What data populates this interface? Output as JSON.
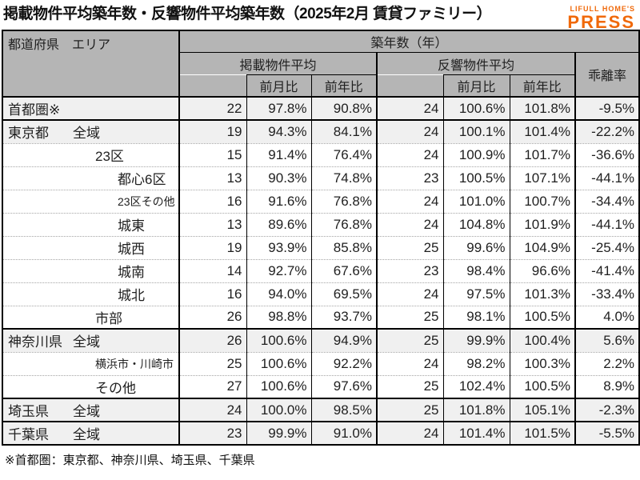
{
  "header": {
    "title": "掲載物件平均築年数・反響物件平均築年数（2025年2月 賃貸ファミリー）",
    "logo_top": "LIFULL HOME'S",
    "logo_bottom": "PRESS"
  },
  "footnote": "※首都圏：東京都、神奈川県、埼玉県、千葉県",
  "colors": {
    "accent_orange": "#f0690a",
    "header_bg": "#b5b5b5",
    "shaded_row_bg": "#f0f0f0",
    "border": "#000000"
  },
  "chart_data": {
    "type": "table",
    "title": "掲載物件平均築年数・反響物件平均築年数（2025年2月 賃貸ファミリー）",
    "corner_header": "都道府県　エリア",
    "age_unit_header": "築年数（年）",
    "groups": {
      "listed": "掲載物件平均",
      "inquiry": "反響物件平均",
      "deviation": "乖離率",
      "mom": "前月比",
      "yoy": "前年比"
    },
    "columns": [
      "都道府県 エリア",
      "掲載物件平均",
      "掲載 前月比",
      "掲載 前年比",
      "反響物件平均",
      "反響 前月比",
      "反響 前年比",
      "乖離率"
    ],
    "rows": [
      {
        "prefecture": "首都圏※",
        "area": "",
        "indent": 0,
        "small": false,
        "shaded": true,
        "sep": "thick",
        "values": [
          "22",
          "97.8%",
          "90.8%",
          "24",
          "100.6%",
          "101.8%",
          "-9.5%"
        ]
      },
      {
        "prefecture": "東京都",
        "area": "全域",
        "indent": 0,
        "small": false,
        "shaded": true,
        "sep": "dot",
        "values": [
          "19",
          "94.3%",
          "84.1%",
          "24",
          "100.1%",
          "101.4%",
          "-22.2%"
        ]
      },
      {
        "prefecture": "",
        "area": "23区",
        "indent": 1,
        "small": false,
        "shaded": false,
        "sep": "dot",
        "values": [
          "15",
          "91.4%",
          "76.4%",
          "24",
          "100.9%",
          "101.7%",
          "-36.6%"
        ]
      },
      {
        "prefecture": "",
        "area": "都心6区",
        "indent": 2,
        "small": false,
        "shaded": false,
        "sep": "dot",
        "values": [
          "13",
          "90.3%",
          "74.8%",
          "23",
          "100.5%",
          "107.1%",
          "-44.1%"
        ]
      },
      {
        "prefecture": "",
        "area": "23区その他",
        "indent": 2,
        "small": true,
        "shaded": false,
        "sep": "dot",
        "values": [
          "16",
          "91.6%",
          "76.8%",
          "24",
          "101.0%",
          "100.7%",
          "-34.4%"
        ]
      },
      {
        "prefecture": "",
        "area": "城東",
        "indent": 2,
        "small": false,
        "shaded": false,
        "sep": "dot",
        "values": [
          "13",
          "89.6%",
          "76.8%",
          "24",
          "104.8%",
          "101.9%",
          "-44.1%"
        ]
      },
      {
        "prefecture": "",
        "area": "城西",
        "indent": 2,
        "small": false,
        "shaded": false,
        "sep": "dot",
        "values": [
          "19",
          "93.9%",
          "85.8%",
          "25",
          "99.6%",
          "104.9%",
          "-25.4%"
        ]
      },
      {
        "prefecture": "",
        "area": "城南",
        "indent": 2,
        "small": false,
        "shaded": false,
        "sep": "dot",
        "values": [
          "14",
          "92.7%",
          "67.6%",
          "23",
          "98.4%",
          "96.6%",
          "-41.4%"
        ]
      },
      {
        "prefecture": "",
        "area": "城北",
        "indent": 2,
        "small": false,
        "shaded": false,
        "sep": "dot",
        "values": [
          "16",
          "94.0%",
          "69.5%",
          "24",
          "97.5%",
          "101.3%",
          "-33.4%"
        ]
      },
      {
        "prefecture": "",
        "area": "市部",
        "indent": 1,
        "small": false,
        "shaded": false,
        "sep": "thick",
        "values": [
          "26",
          "98.8%",
          "93.7%",
          "25",
          "98.1%",
          "100.5%",
          "4.0%"
        ]
      },
      {
        "prefecture": "神奈川県",
        "area": "全域",
        "indent": 0,
        "small": false,
        "shaded": true,
        "sep": "dot",
        "values": [
          "26",
          "100.6%",
          "94.9%",
          "25",
          "99.9%",
          "100.4%",
          "5.6%"
        ]
      },
      {
        "prefecture": "",
        "area": "横浜市・川崎市",
        "indent": 1,
        "small": true,
        "shaded": false,
        "sep": "dot",
        "values": [
          "25",
          "100.6%",
          "92.2%",
          "24",
          "98.2%",
          "100.3%",
          "2.2%"
        ]
      },
      {
        "prefecture": "",
        "area": "その他",
        "indent": 1,
        "small": false,
        "shaded": false,
        "sep": "thick",
        "values": [
          "27",
          "100.6%",
          "97.6%",
          "25",
          "102.4%",
          "100.5%",
          "8.9%"
        ]
      },
      {
        "prefecture": "埼玉県",
        "area": "全域",
        "indent": 0,
        "small": false,
        "shaded": true,
        "sep": "thick",
        "values": [
          "24",
          "100.0%",
          "98.5%",
          "25",
          "101.8%",
          "105.1%",
          "-2.3%"
        ]
      },
      {
        "prefecture": "千葉県",
        "area": "全域",
        "indent": 0,
        "small": false,
        "shaded": true,
        "sep": "none",
        "values": [
          "23",
          "99.9%",
          "91.0%",
          "24",
          "101.4%",
          "101.5%",
          "-5.5%"
        ]
      }
    ]
  }
}
